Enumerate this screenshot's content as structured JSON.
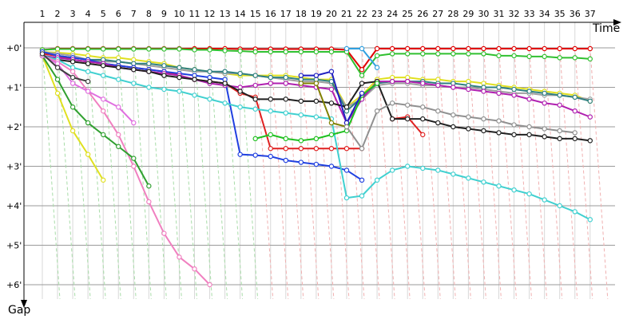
{
  "chart_data": {
    "type": "line",
    "title": "",
    "xlabel": "Time",
    "ylabel": "Gap",
    "x_ticks": [
      "1",
      "2",
      "3",
      "4",
      "5",
      "6",
      "7",
      "8",
      "9",
      "10",
      "11",
      "12",
      "13",
      "14",
      "15",
      "16",
      "17",
      "18",
      "19",
      "20",
      "21",
      "22",
      "23",
      "24",
      "25",
      "26",
      "27",
      "28",
      "29",
      "30",
      "31",
      "32",
      "33",
      "34",
      "35",
      "36",
      "37"
    ],
    "y_ticks": [
      "+0'",
      "+1'",
      "+2'",
      "+3'",
      "+4'",
      "+5'",
      "+6'"
    ],
    "xlim": [
      0,
      38
    ],
    "ylim": [
      0,
      6.4
    ],
    "grid": true,
    "legend": "none",
    "series": [
      {
        "color": "#e00000",
        "values": [
          0.05,
          0.02,
          0.02,
          0.02,
          0.02,
          0.02,
          0.02,
          0.02,
          0.02,
          0.02,
          0.02,
          0.02,
          0.02,
          0.03,
          0.03,
          0.03,
          0.03,
          0.03,
          0.03,
          0.03,
          0.05,
          0.55,
          0.02,
          0.02,
          0.02,
          0.02,
          0.02,
          0.02,
          0.02,
          0.02,
          0.02,
          0.02,
          0.02,
          0.02,
          0.02,
          0.02,
          0.02
        ]
      },
      {
        "color": "#30c030",
        "values": [
          0.05,
          0.03,
          0.03,
          0.03,
          0.03,
          0.03,
          0.03,
          0.03,
          0.03,
          0.03,
          0.05,
          0.05,
          0.07,
          0.08,
          0.1,
          0.1,
          0.1,
          0.1,
          0.1,
          0.1,
          0.1,
          0.7,
          0.2,
          0.15,
          0.15,
          0.15,
          0.15,
          0.15,
          0.15,
          0.15,
          0.2,
          0.2,
          0.22,
          0.22,
          0.25,
          0.25,
          0.28
        ]
      },
      {
        "color": "#30a0e0",
        "values": [
          null,
          null,
          null,
          null,
          null,
          null,
          null,
          null,
          null,
          null,
          null,
          null,
          null,
          null,
          null,
          null,
          null,
          null,
          null,
          null,
          0.02,
          0.02,
          0.5,
          null,
          null,
          null,
          null,
          null,
          null,
          null,
          null,
          null,
          null,
          null,
          null,
          null,
          null
        ]
      },
      {
        "color": "#e0e020",
        "values": [
          0.1,
          0.12,
          0.15,
          0.2,
          0.25,
          0.25,
          0.3,
          0.35,
          0.4,
          0.5,
          0.55,
          0.6,
          0.65,
          0.7,
          0.7,
          0.7,
          0.7,
          0.75,
          0.8,
          0.8,
          1.5,
          1.2,
          0.8,
          0.75,
          0.75,
          0.8,
          0.8,
          0.85,
          0.85,
          0.9,
          0.95,
          1.0,
          1.05,
          1.1,
          1.15,
          1.2,
          1.35
        ]
      },
      {
        "color": "#a0a0a0",
        "values": [
          0.1,
          0.15,
          0.2,
          0.3,
          0.35,
          0.35,
          0.4,
          0.45,
          0.5,
          0.55,
          0.6,
          0.6,
          0.65,
          0.65,
          0.7,
          0.75,
          0.8,
          0.85,
          0.85,
          0.9,
          1.5,
          1.3,
          0.95,
          0.9,
          0.9,
          0.95,
          0.95,
          1.0,
          1.0,
          1.05,
          1.1,
          1.15,
          1.15,
          1.2,
          1.2,
          1.25,
          1.3
        ]
      },
      {
        "color": "#308080",
        "values": [
          0.15,
          0.2,
          0.25,
          0.3,
          0.3,
          0.35,
          0.4,
          0.4,
          0.45,
          0.5,
          0.55,
          0.6,
          0.6,
          0.65,
          0.7,
          0.75,
          0.75,
          0.8,
          0.8,
          0.85,
          1.6,
          1.25,
          0.9,
          0.85,
          0.85,
          0.85,
          0.9,
          0.9,
          0.95,
          1.0,
          1.0,
          1.05,
          1.1,
          1.15,
          1.2,
          1.25,
          1.35
        ]
      },
      {
        "color": "#e02020",
        "values": [
          0.15,
          0.2,
          0.3,
          0.35,
          0.4,
          0.45,
          0.5,
          0.55,
          0.6,
          0.7,
          0.8,
          0.85,
          0.9,
          1.15,
          1.25,
          2.55,
          2.55,
          2.55,
          2.55,
          2.55,
          2.55,
          2.55,
          null,
          1.8,
          1.75,
          2.2,
          null,
          null,
          null,
          null,
          null,
          null,
          null,
          null,
          null,
          null,
          null
        ]
      },
      {
        "color": "#2040e0",
        "values": [
          0.1,
          0.2,
          0.25,
          0.3,
          0.4,
          0.45,
          0.5,
          0.55,
          0.6,
          0.65,
          0.7,
          0.75,
          0.8,
          2.7,
          2.72,
          2.75,
          2.85,
          2.9,
          2.95,
          3.0,
          3.1,
          3.35,
          null,
          null,
          null,
          null,
          null,
          null,
          null,
          null,
          null,
          null,
          null,
          null,
          null,
          null,
          null
        ]
      },
      {
        "color": "#b020b0",
        "values": [
          0.2,
          0.25,
          0.3,
          0.35,
          0.4,
          0.5,
          0.55,
          0.6,
          0.65,
          0.7,
          0.8,
          0.9,
          0.95,
          1.0,
          0.95,
          0.9,
          0.9,
          0.95,
          1.0,
          1.05,
          1.9,
          1.3,
          0.85,
          0.85,
          0.85,
          0.9,
          0.95,
          1.0,
          1.05,
          1.1,
          1.15,
          1.2,
          1.3,
          1.4,
          1.45,
          1.6,
          1.75
        ]
      },
      {
        "color": "#202020",
        "values": [
          0.2,
          0.3,
          0.35,
          0.4,
          0.45,
          0.5,
          0.55,
          0.6,
          0.7,
          0.75,
          0.8,
          0.85,
          0.9,
          1.1,
          1.3,
          1.3,
          1.3,
          1.35,
          1.35,
          1.4,
          1.5,
          0.9,
          0.85,
          1.8,
          1.8,
          1.8,
          1.9,
          2.0,
          2.05,
          2.1,
          2.15,
          2.2,
          2.2,
          2.25,
          2.3,
          2.3,
          2.35
        ]
      },
      {
        "color": "#40d0d0",
        "values": [
          0.2,
          0.3,
          0.5,
          0.6,
          0.7,
          0.8,
          0.9,
          1.0,
          1.05,
          1.1,
          1.2,
          1.3,
          1.4,
          1.5,
          1.55,
          1.6,
          1.65,
          1.7,
          1.75,
          1.8,
          3.8,
          3.75,
          3.35,
          3.1,
          3.0,
          3.05,
          3.1,
          3.2,
          3.3,
          3.4,
          3.5,
          3.6,
          3.7,
          3.85,
          4.0,
          4.15,
          4.35
        ]
      },
      {
        "color": "#f080c0",
        "values": [
          0.2,
          0.35,
          0.6,
          1.1,
          1.6,
          2.2,
          3.0,
          3.9,
          4.7,
          5.3,
          5.6,
          6.0,
          null,
          null,
          null,
          null,
          null,
          null,
          null,
          null,
          null,
          null,
          null,
          null,
          null,
          null,
          null,
          null,
          null,
          null,
          null,
          null,
          null,
          null,
          null,
          null,
          null
        ]
      },
      {
        "color": "#e0e020",
        "values": [
          0.2,
          1.15,
          2.1,
          2.7,
          3.35,
          null,
          null,
          null,
          null,
          null,
          null,
          null,
          null,
          null,
          null,
          null,
          null,
          null,
          null,
          null,
          null,
          null,
          null,
          null,
          null,
          null,
          null,
          null,
          null,
          null,
          null,
          null,
          null,
          null,
          null,
          null,
          null
        ]
      },
      {
        "color": "#30a030",
        "values": [
          0.2,
          0.8,
          1.5,
          1.9,
          2.2,
          2.5,
          2.8,
          3.5,
          null,
          null,
          null,
          null,
          null,
          null,
          null,
          null,
          null,
          null,
          null,
          null,
          null,
          null,
          null,
          null,
          null,
          null,
          null,
          null,
          null,
          null,
          null,
          null,
          null,
          null,
          null,
          null,
          null
        ]
      },
      {
        "color": "#e070e0",
        "values": [
          0.2,
          0.4,
          0.9,
          1.1,
          1.3,
          1.5,
          1.9,
          null,
          null,
          null,
          null,
          null,
          null,
          null,
          null,
          null,
          null,
          null,
          null,
          null,
          null,
          null,
          null,
          null,
          null,
          null,
          null,
          null,
          null,
          null,
          null,
          null,
          null,
          null,
          null,
          null,
          null
        ]
      },
      {
        "color": "#404040",
        "values": [
          0.15,
          0.5,
          0.75,
          0.85,
          null,
          null,
          null,
          null,
          null,
          null,
          null,
          null,
          null,
          null,
          null,
          null,
          null,
          null,
          null,
          null,
          null,
          null,
          null,
          null,
          null,
          null,
          null,
          null,
          null,
          null,
          null,
          null,
          null,
          null,
          null,
          null,
          null
        ]
      },
      {
        "color": "#20c020",
        "values": [
          null,
          null,
          null,
          null,
          null,
          null,
          null,
          null,
          null,
          null,
          null,
          null,
          null,
          null,
          2.3,
          2.2,
          2.3,
          2.35,
          2.3,
          2.2,
          2.1,
          1.2,
          0.9,
          null,
          null,
          null,
          null,
          null,
          null,
          null,
          null,
          null,
          null,
          null,
          null,
          null,
          null
        ]
      },
      {
        "color": "#2020c0",
        "values": [
          null,
          null,
          null,
          null,
          null,
          null,
          null,
          null,
          null,
          null,
          null,
          null,
          null,
          null,
          null,
          null,
          null,
          0.7,
          0.7,
          0.6,
          1.9,
          1.15,
          null,
          null,
          null,
          null,
          null,
          null,
          null,
          null,
          null,
          null,
          null,
          null,
          null,
          null,
          null
        ]
      },
      {
        "color": "#808000",
        "values": [
          null,
          null,
          null,
          null,
          null,
          null,
          null,
          null,
          null,
          null,
          null,
          null,
          null,
          null,
          null,
          null,
          null,
          0.9,
          0.9,
          1.9,
          2.0,
          null,
          null,
          null,
          null,
          null,
          null,
          null,
          null,
          null,
          null,
          null,
          null,
          null,
          null,
          null,
          null
        ]
      },
      {
        "color": "#909090",
        "values": [
          null,
          null,
          null,
          null,
          null,
          null,
          null,
          null,
          null,
          null,
          null,
          null,
          null,
          null,
          null,
          null,
          null,
          null,
          null,
          null,
          2.0,
          2.55,
          1.6,
          1.4,
          1.45,
          1.5,
          1.6,
          1.7,
          1.75,
          1.8,
          1.85,
          1.95,
          2.0,
          2.05,
          2.1,
          2.15,
          null
        ]
      }
    ]
  }
}
